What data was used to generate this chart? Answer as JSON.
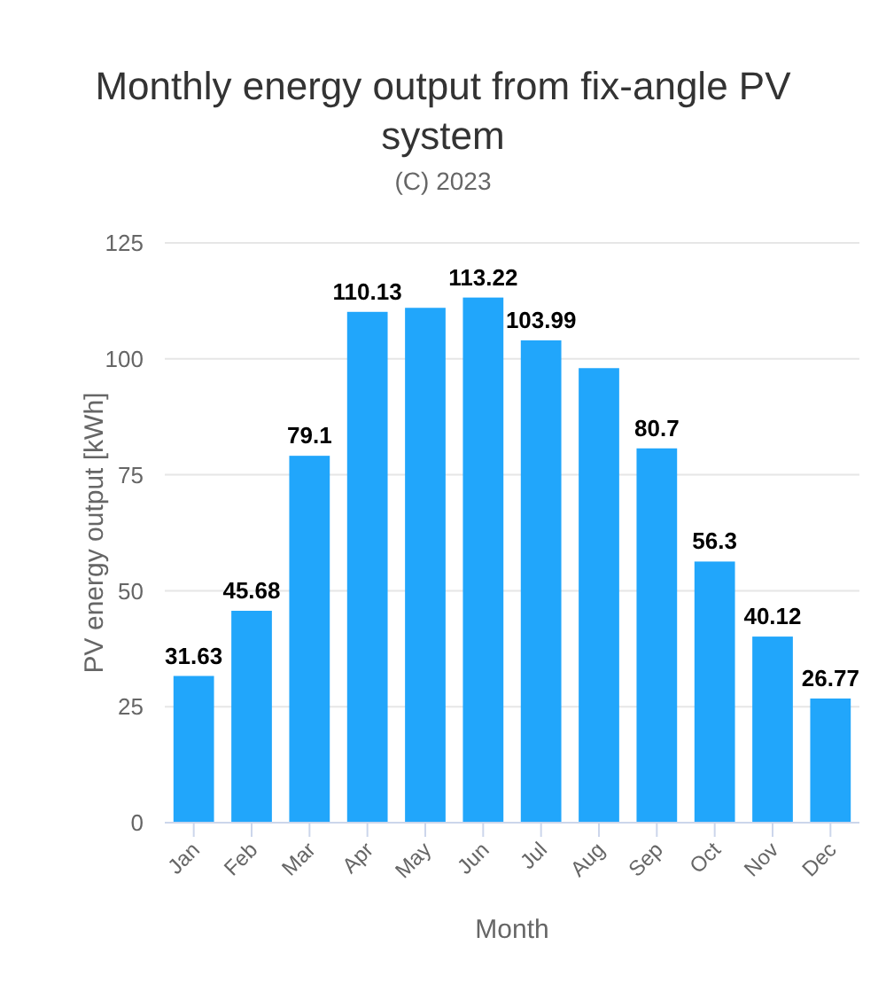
{
  "chart_data": {
    "type": "bar",
    "title": "Monthly energy output from fix-angle PV system",
    "subtitle": "(C) 2023",
    "xlabel": "Month",
    "ylabel": "PV energy output [kWh]",
    "categories": [
      "Jan",
      "Feb",
      "Mar",
      "Apr",
      "May",
      "Jun",
      "Jul",
      "Aug",
      "Sep",
      "Oct",
      "Nov",
      "Dec"
    ],
    "values": [
      31.63,
      45.68,
      79.1,
      110.13,
      111,
      113.22,
      103.99,
      98,
      80.7,
      56.3,
      40.12,
      26.77
    ],
    "value_labels": [
      "31.63",
      "45.68",
      "79.1",
      "110.13",
      null,
      "113.22",
      "103.99",
      null,
      "80.7",
      "56.3",
      "40.12",
      "26.77"
    ],
    "color": "#21a6fb",
    "ylim": [
      0,
      125
    ],
    "yticks": [
      0,
      25,
      50,
      75,
      100,
      125
    ],
    "grid": "y"
  }
}
